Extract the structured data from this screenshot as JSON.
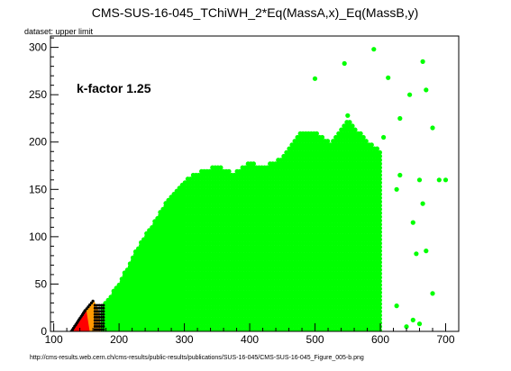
{
  "chart_data": {
    "type": "scatter",
    "title": "CMS-SUS-16-045_TChiWH_2*Eq(MassA,x)_Eq(MassB,y)",
    "subtitle": "dataset: upper limit",
    "annotation": "k-factor 1.25",
    "footer": "http://cms-results.web.cern.ch/cms-results/public-results/publications/SUS-16-045/CMS-SUS-16-045_Figure_005-b.png",
    "xlim": [
      95,
      720
    ],
    "ylim": [
      0,
      312
    ],
    "x_ticks": [
      100,
      200,
      300,
      400,
      500,
      600,
      700
    ],
    "y_ticks": [
      0,
      50,
      100,
      150,
      200,
      250,
      300
    ],
    "grid": false,
    "legend": "none",
    "colors": {
      "allowed": "#00ff00",
      "excluded": "#ff0000",
      "excluded_by_other": "#ff9900",
      "border": "#000000"
    },
    "series": [
      {
        "id": "allowed",
        "color": "#00ff00",
        "envelope": [
          [
            175,
            0
          ],
          [
            175,
            28
          ],
          [
            200,
            50
          ],
          [
            225,
            85
          ],
          [
            250,
            112
          ],
          [
            275,
            140
          ],
          [
            300,
            160
          ],
          [
            325,
            170
          ],
          [
            350,
            175
          ],
          [
            375,
            168
          ],
          [
            400,
            178
          ],
          [
            425,
            175
          ],
          [
            450,
            185
          ],
          [
            475,
            210
          ],
          [
            500,
            212
          ],
          [
            525,
            200
          ],
          [
            550,
            225
          ],
          [
            575,
            205
          ],
          [
            600,
            190
          ],
          [
            600,
            0
          ]
        ],
        "extra_points": [
          [
            590,
            298
          ],
          [
            545,
            283
          ],
          [
            665,
            285
          ],
          [
            612,
            268
          ],
          [
            500,
            267
          ],
          [
            645,
            250
          ],
          [
            670,
            255
          ],
          [
            550,
            228
          ],
          [
            630,
            225
          ],
          [
            680,
            215
          ],
          [
            605,
            205
          ],
          [
            630,
            165
          ],
          [
            660,
            160
          ],
          [
            690,
            160
          ],
          [
            625,
            150
          ],
          [
            650,
            115
          ],
          [
            665,
            135
          ],
          [
            700,
            160
          ],
          [
            655,
            82
          ],
          [
            670,
            85
          ],
          [
            680,
            40
          ],
          [
            625,
            27
          ],
          [
            640,
            5
          ],
          [
            650,
            12
          ],
          [
            660,
            8
          ]
        ]
      },
      {
        "id": "excluded",
        "color": "#ff0000",
        "region": [
          [
            127,
            0
          ],
          [
            150,
            22
          ],
          [
            155,
            0
          ]
        ]
      },
      {
        "id": "excluded_by_other",
        "color": "#ff9900",
        "region": [
          [
            150,
            0
          ],
          [
            150,
            22
          ],
          [
            162,
            32
          ],
          [
            170,
            20
          ],
          [
            172,
            0
          ]
        ]
      },
      {
        "id": "border",
        "color": "#000000",
        "region": [
          [
            127,
            0
          ],
          [
            148,
            22
          ],
          [
            160,
            32
          ],
          [
            175,
            30
          ],
          [
            178,
            0
          ]
        ]
      }
    ]
  }
}
